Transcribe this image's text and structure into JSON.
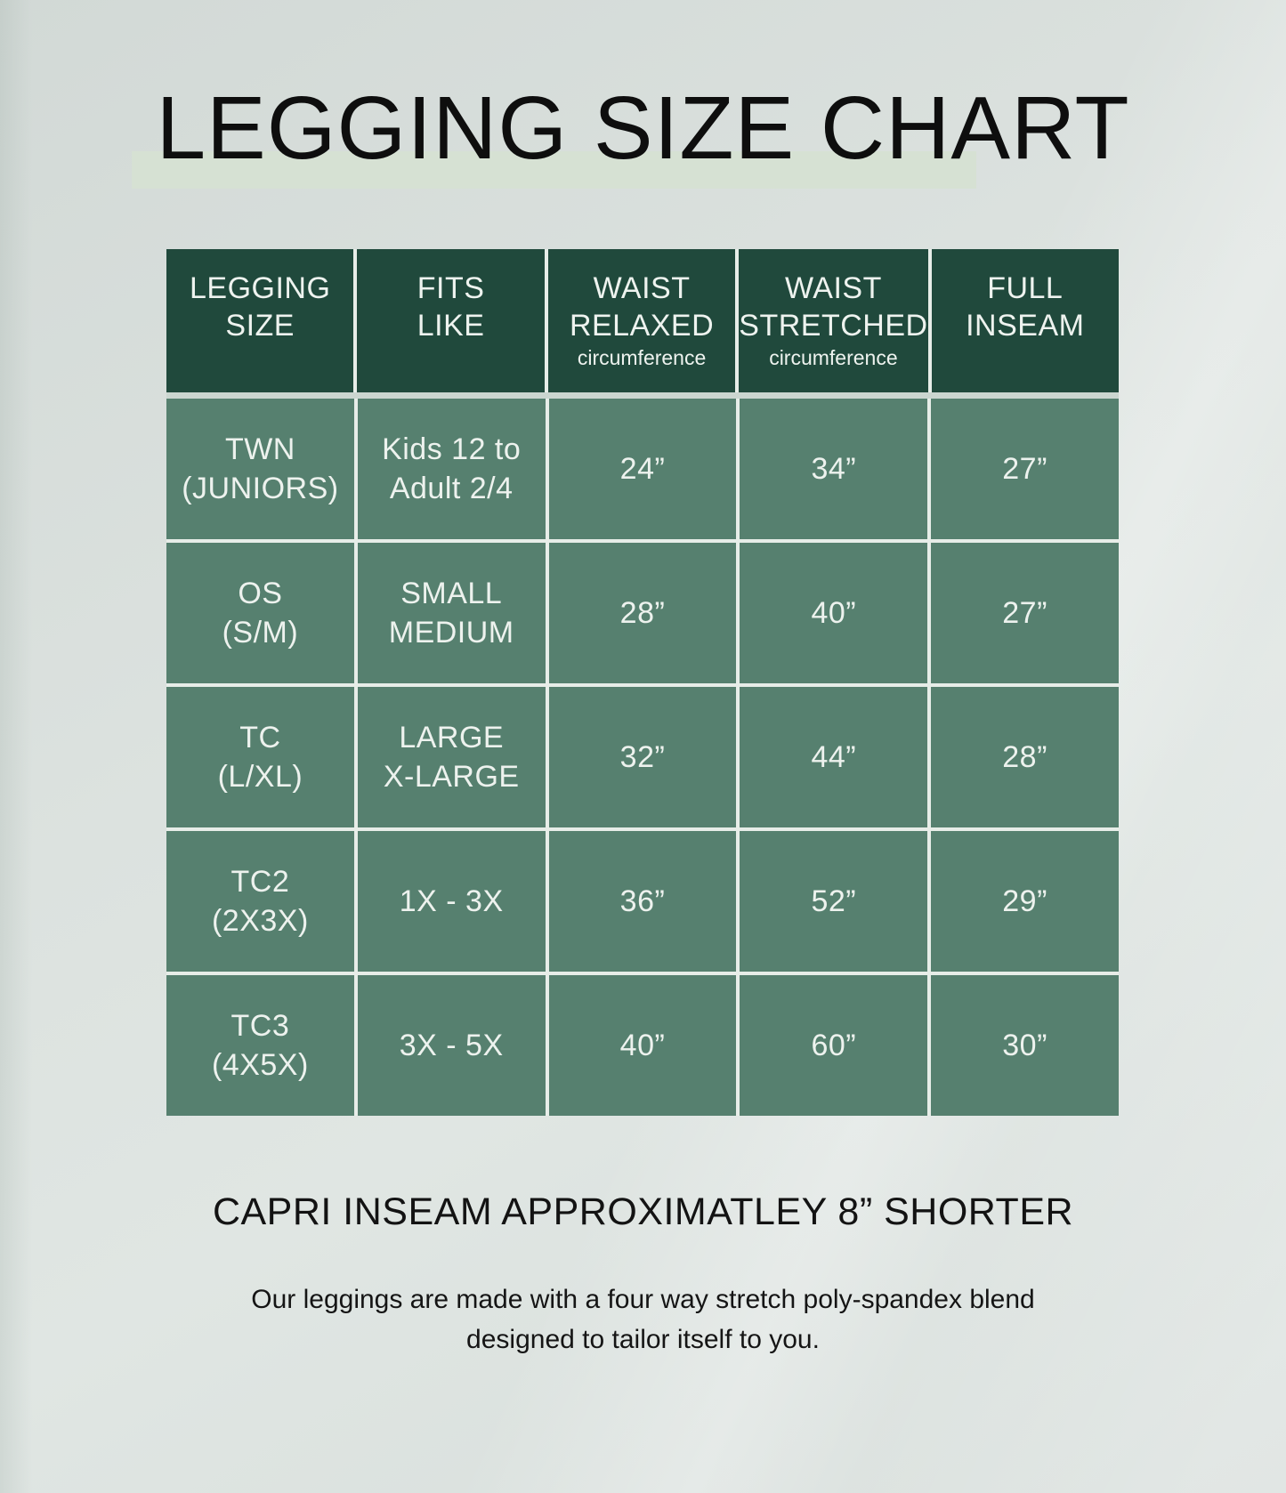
{
  "title": "LEGGING SIZE CHART",
  "chart": {
    "columns": [
      {
        "title": "LEGGING\nSIZE",
        "sub": ""
      },
      {
        "title": "FITS\nLIKE",
        "sub": ""
      },
      {
        "title": "WAIST\nRELAXED",
        "sub": "circumference"
      },
      {
        "title": "WAIST\nSTRETCHED",
        "sub": "circumference"
      },
      {
        "title": "FULL\nINSEAM",
        "sub": ""
      }
    ],
    "rows": [
      {
        "size": "TWN\n(JUNIORS)",
        "fits": "Kids 12 to\nAdult 2/4",
        "waist_relaxed": "24”",
        "waist_stretched": "34”",
        "full_inseam": "27”"
      },
      {
        "size": "OS\n(S/M)",
        "fits": "SMALL\nMEDIUM",
        "waist_relaxed": "28”",
        "waist_stretched": "40”",
        "full_inseam": "27”"
      },
      {
        "size": "TC\n(L/XL)",
        "fits": "LARGE\nX-LARGE",
        "waist_relaxed": "32”",
        "waist_stretched": "44”",
        "full_inseam": "28”"
      },
      {
        "size": "TC2\n(2X3X)",
        "fits": "1X - 3X",
        "waist_relaxed": "36”",
        "waist_stretched": "52”",
        "full_inseam": "29”"
      },
      {
        "size": "TC3\n(4X5X)",
        "fits": "3X - 5X",
        "waist_relaxed": "40”",
        "waist_stretched": "60”",
        "full_inseam": "30”"
      }
    ]
  },
  "notes": {
    "capri": "CAPRI INSEAM APPROXIMATLEY 8” SHORTER",
    "description": "Our leggings are made with a four way stretch poly-spandex blend designed to tailor itself to you."
  },
  "colors": {
    "header_green": "#20493C",
    "body_green": "#56806F",
    "highlight_band": "#D6E1D3",
    "cell_separator": "#E7EDE8",
    "header_gap": "#CBD6D0",
    "background": "#DAE0DD",
    "title_text": "#0E0E0E",
    "table_text": "#EEF3EF"
  }
}
